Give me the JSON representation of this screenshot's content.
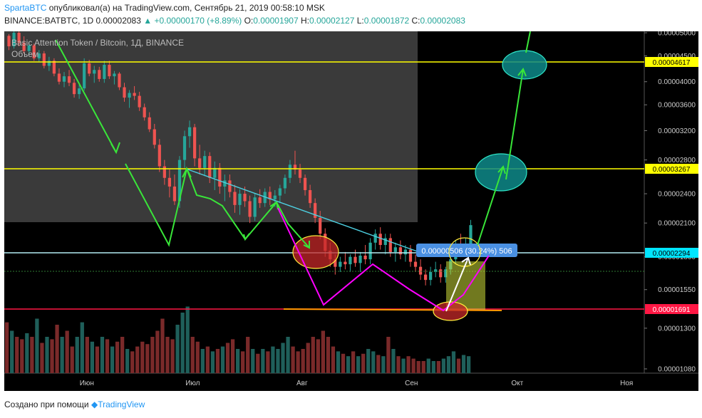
{
  "header": {
    "author": "SpartaBTC",
    "published": "опубликовал(а) на TradingView.com, Сентябрь 21, 2019 00:58:10 MSK",
    "symbol": "BINANCE:BATBTC, 1D",
    "price": "0.00002083",
    "arrow": "▲",
    "change": "+0.00000170 (+8.89%)",
    "o_label": "O:",
    "o_value": "0.00001907",
    "h_label": "H:",
    "h_value": "0.00002127",
    "l_label": "L:",
    "l_value": "0.00001872",
    "c_label": "C:",
    "c_value": "0.00002083"
  },
  "legend": {
    "title": "Basic Attention Token / Bitcoin, 1Д, BINANCE",
    "volume": "Объем"
  },
  "footer": {
    "text": "Создано при помощи",
    "brand": "TradingView"
  },
  "colors": {
    "up": "#26a69a",
    "down": "#ef5350",
    "yellow_line": "#ffff00",
    "cyan_line": "#80deea",
    "red_line": "#ff1744",
    "orange_line": "#ff9800",
    "green_arrow": "#39e639",
    "magenta": "#ff00ff",
    "teal_ellipse": "#0e8a8a",
    "red_ellipse": "#c62828"
  },
  "chart_data": {
    "type": "candlestick",
    "y_scale": "log",
    "yticks": [
      "0.00005000",
      "0.00004500",
      "0.00004000",
      "0.00003600",
      "0.00003200",
      "0.00002800",
      "0.00002400",
      "0.00002100",
      "0.00001800",
      "0.00001550",
      "0.00001300",
      "0.00001080"
    ],
    "xticks": [
      "Июн",
      "Июл",
      "Авг",
      "Сен",
      "Окт",
      "Ноя"
    ],
    "horizontal_levels": [
      {
        "value": "0.00004617",
        "color": "yellow"
      },
      {
        "value": "0.00003267",
        "color": "yellow"
      },
      {
        "value": "0.00002294",
        "color": "cyan"
      },
      {
        "value": "0.00001691",
        "color": "red"
      }
    ],
    "measure_label": "0.00000506 (30.24%) 506",
    "candles": [
      [
        4.93e-05,
        4.97e-05,
        4.62e-05,
        4.7e-05
      ],
      [
        4.7e-05,
        5.1e-05,
        4.65e-05,
        5e-05
      ],
      [
        5e-05,
        5.05e-05,
        4.7e-05,
        4.78e-05
      ],
      [
        4.78e-05,
        4.92e-05,
        4.55e-05,
        4.6e-05
      ],
      [
        4.6e-05,
        4.8e-05,
        4.52e-05,
        4.72e-05
      ],
      [
        4.72e-05,
        4.76e-05,
        4.4e-05,
        4.45e-05
      ],
      [
        4.45e-05,
        4.62e-05,
        4.38e-05,
        4.55e-05
      ],
      [
        4.55e-05,
        4.6e-05,
        4.25e-05,
        4.3e-05
      ],
      [
        4.3e-05,
        4.48e-05,
        4.2e-05,
        4.4e-05
      ],
      [
        4.4e-05,
        4.45e-05,
        4.1e-05,
        4.15e-05
      ],
      [
        4.15e-05,
        4.25e-05,
        3.95e-05,
        4e-05
      ],
      [
        4e-05,
        4.18e-05,
        3.9e-05,
        4.1e-05
      ],
      [
        4.1e-05,
        4.22e-05,
        3.92e-05,
        3.98e-05
      ],
      [
        3.98e-05,
        4.05e-05,
        3.72e-05,
        3.78e-05
      ],
      [
        3.78e-05,
        3.95e-05,
        3.7e-05,
        3.88e-05
      ],
      [
        3.88e-05,
        4.45e-05,
        3.84e-05,
        4.35e-05
      ],
      [
        4.35e-05,
        4.42e-05,
        4.1e-05,
        4.15e-05
      ],
      [
        4.15e-05,
        4.3e-05,
        3.98e-05,
        4.22e-05
      ],
      [
        4.22e-05,
        4.28e-05,
        4e-05,
        4.05e-05
      ],
      [
        4.05e-05,
        4.4e-05,
        3.98e-05,
        4.32e-05
      ],
      [
        4.32e-05,
        4.4e-05,
        4.05e-05,
        4.1e-05
      ],
      [
        4.1e-05,
        4.2e-05,
        3.95e-05,
        4.15e-05
      ],
      [
        4.15e-05,
        4.18e-05,
        3.85e-05,
        3.9e-05
      ],
      [
        3.9e-05,
        3.98e-05,
        3.65e-05,
        3.72e-05
      ],
      [
        3.72e-05,
        3.85e-05,
        3.55e-05,
        3.8e-05
      ],
      [
        3.8e-05,
        3.92e-05,
        3.68e-05,
        3.75e-05
      ],
      [
        3.75e-05,
        3.82e-05,
        3.5e-05,
        3.56e-05
      ],
      [
        3.56e-05,
        3.62e-05,
        3.35e-05,
        3.4e-05
      ],
      [
        3.4e-05,
        3.48e-05,
        3.18e-05,
        3.22e-05
      ],
      [
        3.22e-05,
        3.3e-05,
        2.95e-05,
        3e-05
      ],
      [
        3e-05,
        3.08e-05,
        2.65e-05,
        2.72e-05
      ],
      [
        2.72e-05,
        2.8e-05,
        2.5e-05,
        2.58e-05
      ],
      [
        2.58e-05,
        2.68e-05,
        2.36e-05,
        2.48e-05
      ],
      [
        2.48e-05,
        2.62e-05,
        2.28e-05,
        2.32e-05
      ],
      [
        2.32e-05,
        2.85e-05,
        2.25e-05,
        2.8e-05
      ],
      [
        2.8e-05,
        3.2e-05,
        2.7e-05,
        3.12e-05
      ],
      [
        3.12e-05,
        3.35e-05,
        2.96e-05,
        3.25e-05
      ],
      [
        3.25e-05,
        3.3e-05,
        2.72e-05,
        2.82e-05
      ],
      [
        2.82e-05,
        3e-05,
        2.62e-05,
        2.7e-05
      ],
      [
        2.7e-05,
        2.92e-05,
        2.6e-05,
        2.85e-05
      ],
      [
        2.85e-05,
        2.9e-05,
        2.52e-05,
        2.58e-05
      ],
      [
        2.58e-05,
        2.78e-05,
        2.44e-05,
        2.7e-05
      ],
      [
        2.7e-05,
        2.76e-05,
        2.4e-05,
        2.48e-05
      ],
      [
        2.48e-05,
        2.62e-05,
        2.32e-05,
        2.55e-05
      ],
      [
        2.55e-05,
        2.62e-05,
        2.36e-05,
        2.42e-05
      ],
      [
        2.42e-05,
        2.5e-05,
        2.2e-05,
        2.28e-05
      ],
      [
        2.28e-05,
        2.45e-05,
        2.18e-05,
        2.4e-05
      ],
      [
        2.4e-05,
        2.48e-05,
        2.26e-05,
        2.32e-05
      ],
      [
        2.32e-05,
        2.38e-05,
        2.1e-05,
        2.16e-05
      ],
      [
        2.16e-05,
        2.4e-05,
        2.12e-05,
        2.36e-05
      ],
      [
        2.36e-05,
        2.45e-05,
        2.25e-05,
        2.3e-05
      ],
      [
        2.3e-05,
        2.46e-05,
        2.26e-05,
        2.42e-05
      ],
      [
        2.42e-05,
        2.48e-05,
        2.28e-05,
        2.34e-05
      ],
      [
        2.34e-05,
        2.44e-05,
        2.26e-05,
        2.38e-05
      ],
      [
        2.38e-05,
        2.5e-05,
        2.3e-05,
        2.46e-05
      ],
      [
        2.46e-05,
        2.62e-05,
        2.4e-05,
        2.58e-05
      ],
      [
        2.58e-05,
        2.8e-05,
        2.52e-05,
        2.74e-05
      ],
      [
        2.74e-05,
        2.92e-05,
        2.62e-05,
        2.68e-05
      ],
      [
        2.68e-05,
        2.75e-05,
        2.52e-05,
        2.58e-05
      ],
      [
        2.58e-05,
        2.62e-05,
        2.38e-05,
        2.44e-05
      ],
      [
        2.44e-05,
        2.5e-05,
        2.25e-05,
        2.3e-05
      ],
      [
        2.3e-05,
        2.35e-05,
        2.1e-05,
        2.15e-05
      ],
      [
        2.15e-05,
        2.22e-05,
        1.95e-05,
        2e-05
      ],
      [
        2e-05,
        2.05e-05,
        1.8e-05,
        1.85e-05
      ],
      [
        1.85e-05,
        1.92e-05,
        1.72e-05,
        1.78e-05
      ],
      [
        1.78e-05,
        1.82e-05,
        1.66e-05,
        1.72e-05
      ],
      [
        1.72e-05,
        1.8e-05,
        1.68e-05,
        1.76e-05
      ],
      [
        1.76e-05,
        1.84e-05,
        1.7e-05,
        1.74e-05
      ],
      [
        1.74e-05,
        1.82e-05,
        1.68e-05,
        1.8e-05
      ],
      [
        1.8e-05,
        1.86e-05,
        1.72e-05,
        1.75e-05
      ],
      [
        1.75e-05,
        1.84e-05,
        1.68e-05,
        1.81e-05
      ],
      [
        1.81e-05,
        1.9e-05,
        1.74e-05,
        1.78e-05
      ],
      [
        1.78e-05,
        1.96e-05,
        1.74e-05,
        1.92e-05
      ],
      [
        1.92e-05,
        2.04e-05,
        1.86e-05,
        2e-05
      ],
      [
        2e-05,
        2.06e-05,
        1.86e-05,
        1.9e-05
      ],
      [
        1.9e-05,
        2e-05,
        1.82e-05,
        1.96e-05
      ],
      [
        1.96e-05,
        2e-05,
        1.8e-05,
        1.84e-05
      ],
      [
        1.84e-05,
        1.92e-05,
        1.76e-05,
        1.88e-05
      ],
      [
        1.88e-05,
        1.94e-05,
        1.78e-05,
        1.82e-05
      ],
      [
        1.82e-05,
        1.9e-05,
        1.76e-05,
        1.86e-05
      ],
      [
        1.86e-05,
        1.9e-05,
        1.72e-05,
        1.76e-05
      ],
      [
        1.76e-05,
        1.82e-05,
        1.68e-05,
        1.72e-05
      ],
      [
        1.72e-05,
        1.78e-05,
        1.62e-05,
        1.66e-05
      ],
      [
        1.66e-05,
        1.7e-05,
        1.58e-05,
        1.62e-05
      ],
      [
        1.62e-05,
        1.72e-05,
        1.58e-05,
        1.68e-05
      ],
      [
        1.68e-05,
        1.76e-05,
        1.64e-05,
        1.7e-05
      ],
      [
        1.7e-05,
        1.74e-05,
        1.6e-05,
        1.64e-05
      ],
      [
        1.64e-05,
        1.72e-05,
        1.6e-05,
        1.7e-05
      ],
      [
        1.7e-05,
        1.82e-05,
        1.66e-05,
        1.78e-05
      ],
      [
        1.78e-05,
        1.94e-05,
        1.74e-05,
        1.9e-05
      ],
      [
        1.9e-05,
        2e-05,
        1.82e-05,
        1.86e-05
      ],
      [
        1.86e-05,
        1.96e-05,
        1.8e-05,
        1.91e-05
      ],
      [
        1.91e-05,
        2.13e-05,
        1.87e-05,
        2.08e-05
      ]
    ],
    "volume": [
      0.42,
      0.35,
      0.3,
      0.28,
      0.33,
      0.3,
      0.45,
      0.25,
      0.3,
      0.28,
      0.4,
      0.3,
      0.35,
      0.22,
      0.3,
      0.42,
      0.3,
      0.26,
      0.22,
      0.3,
      0.28,
      0.22,
      0.26,
      0.3,
      0.2,
      0.18,
      0.22,
      0.26,
      0.24,
      0.3,
      0.35,
      0.45,
      0.3,
      0.28,
      0.4,
      0.5,
      0.55,
      0.3,
      0.26,
      0.2,
      0.22,
      0.18,
      0.2,
      0.22,
      0.25,
      0.28,
      0.2,
      0.18,
      0.3,
      0.2,
      0.16,
      0.2,
      0.18,
      0.22,
      0.2,
      0.25,
      0.3,
      0.22,
      0.18,
      0.2,
      0.25,
      0.3,
      0.28,
      0.35,
      0.3,
      0.22,
      0.18,
      0.16,
      0.14,
      0.18,
      0.14,
      0.16,
      0.2,
      0.18,
      0.15,
      0.14,
      0.3,
      0.2,
      0.14,
      0.12,
      0.14,
      0.12,
      0.1,
      0.1,
      0.12,
      0.1,
      0.1,
      0.12,
      0.14,
      0.18,
      0.12,
      0.15,
      0.14
    ]
  }
}
